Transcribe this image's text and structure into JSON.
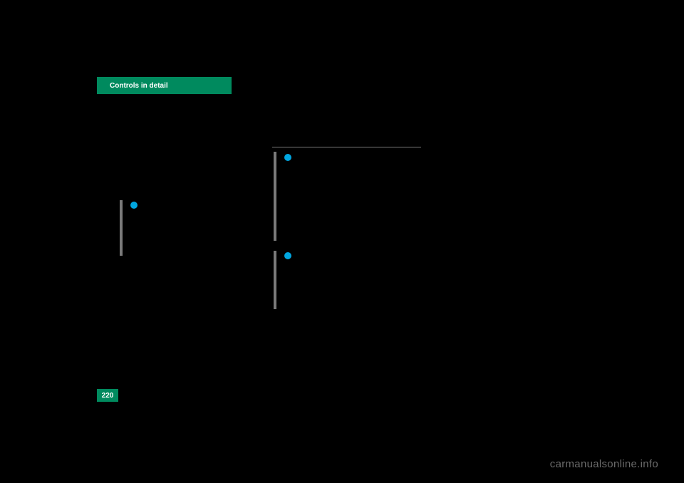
{
  "header": {
    "title": "Controls in detail"
  },
  "page": {
    "number": "220"
  },
  "watermark": {
    "text": "carmanualsonline.info"
  },
  "colors": {
    "background": "#000000",
    "accent_green": "#008a5e",
    "bullet_blue": "#00a6e0",
    "bar_gray": "#7a7a7a",
    "watermark_gray": "#6b6b6b"
  }
}
